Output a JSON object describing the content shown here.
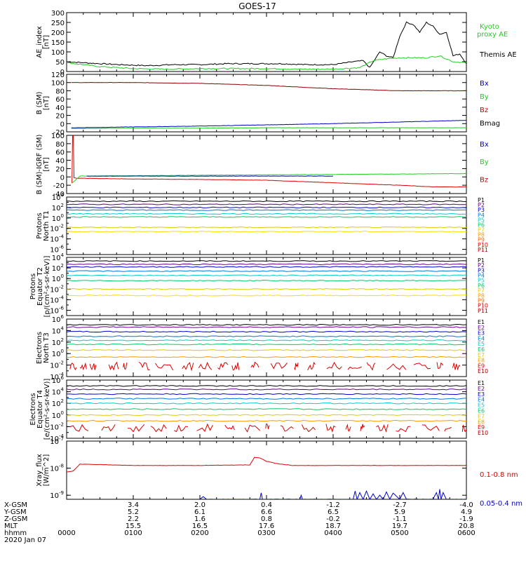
{
  "title": "GOES-17",
  "colors": {
    "black": "#000000",
    "red": "#dd0000",
    "green": "#22dd22",
    "blue": "#0000cc",
    "darkred": "#8b0000"
  },
  "chart_data": [
    {
      "type": "line",
      "panel": "ae",
      "ylabel": [
        "AE_index",
        "[nT]"
      ],
      "ylim": [
        0,
        300
      ],
      "yticks": [
        "300",
        "250",
        "200",
        "150",
        "100",
        "50",
        "0"
      ],
      "legend": [
        {
          "name": "Kyoto",
          "color": "#22cc22"
        },
        {
          "name": "proxy AE",
          "color": "#22cc22"
        },
        {
          "name": "Themis AE",
          "color": "#000000"
        }
      ],
      "series": [
        {
          "name": "Themis AE",
          "color": "#000000",
          "x": [
            0,
            0.5,
            0.8,
            1.2,
            1.6,
            2.0,
            2.4,
            2.8,
            3.2,
            3.6,
            4.0,
            4.3,
            4.45,
            4.55,
            4.7,
            4.8,
            4.9,
            5.0,
            5.1,
            5.2,
            5.3,
            5.4,
            5.5,
            5.6,
            5.7,
            5.8,
            5.9,
            6.0
          ],
          "y": [
            50,
            40,
            35,
            30,
            35,
            35,
            40,
            40,
            40,
            35,
            35,
            50,
            55,
            20,
            100,
            80,
            70,
            180,
            250,
            240,
            200,
            250,
            230,
            190,
            200,
            80,
            90,
            40
          ]
        },
        {
          "name": "Kyoto proxy AE",
          "color": "#22cc22",
          "x": [
            0,
            0.5,
            1,
            1.5,
            2,
            2.5,
            3,
            3.5,
            4,
            4.4,
            4.6,
            4.8,
            5.0,
            5.2,
            5.4,
            5.6,
            5.8,
            6.0
          ],
          "y": [
            45,
            25,
            15,
            12,
            15,
            15,
            15,
            12,
            12,
            20,
            55,
            65,
            70,
            70,
            70,
            80,
            50,
            45
          ]
        }
      ]
    },
    {
      "type": "line",
      "panel": "bsm",
      "ylabel": [
        "B (SM)",
        "[nT]"
      ],
      "ylim": [
        -20,
        120
      ],
      "yticks": [
        "120",
        "100",
        "80",
        "60",
        "40",
        "20",
        "0",
        "-20"
      ],
      "legend": [
        {
          "name": "Bx",
          "color": "#0000cc"
        },
        {
          "name": "By",
          "color": "#22cc22"
        },
        {
          "name": "Bz",
          "color": "#cc0000"
        },
        {
          "name": "Bmag",
          "color": "#000000"
        }
      ],
      "series": [
        {
          "name": "Bz",
          "color": "#8b0000",
          "x": [
            0.07,
            1,
            2,
            3,
            4,
            5,
            6
          ],
          "y": [
            100,
            100,
            98,
            93,
            85,
            80,
            80
          ]
        },
        {
          "name": "Bx",
          "color": "#0000cc",
          "x": [
            0.07,
            1,
            2,
            3,
            4,
            5,
            6
          ],
          "y": [
            -10,
            -8,
            -6,
            -3,
            0,
            4,
            8
          ]
        },
        {
          "name": "By",
          "color": "#22cc22",
          "x": [
            0.07,
            1,
            2,
            3,
            4,
            5,
            6
          ],
          "y": [
            -12,
            -11,
            -11,
            -10,
            -10,
            -10,
            -10
          ]
        }
      ]
    },
    {
      "type": "line",
      "panel": "bsmigrf",
      "ylabel": [
        "B (SM)-IGRF (SM)",
        "[nT]"
      ],
      "ylim": [
        -40,
        100
      ],
      "yticks": [
        "100",
        "80",
        "60",
        "40",
        "20",
        "0",
        "-20",
        "-40"
      ],
      "legend": [
        {
          "name": "Bx",
          "color": "#0000cc"
        },
        {
          "name": "By",
          "color": "#22cc22"
        },
        {
          "name": "Bz",
          "color": "#cc0000"
        }
      ],
      "series": [
        {
          "name": "Bz",
          "color": "#dd0000",
          "x": [
            0.08,
            0.09,
            0.1,
            0.11,
            0.15,
            1,
            2,
            3,
            4,
            5,
            5.5,
            6
          ],
          "y": [
            -15,
            100,
            100,
            -2,
            -3,
            -5,
            -6,
            -8,
            -14,
            -20,
            -24,
            -24
          ]
        },
        {
          "name": "By",
          "color": "#22cc22",
          "x": [
            0.08,
            0.2,
            1,
            2,
            3,
            4,
            5,
            6
          ],
          "y": [
            -15,
            2,
            3,
            4,
            5,
            6,
            7,
            8
          ]
        },
        {
          "name": "Bx",
          "color": "#0000cc",
          "x": [
            0.3,
            1,
            2,
            3,
            4
          ],
          "y": [
            2,
            2,
            2,
            2,
            2
          ]
        }
      ]
    },
    {
      "type": "line",
      "panel": "pnorth",
      "logscale": true,
      "ylabel": [
        "Protons",
        "North T1"
      ],
      "ylim_exp": [
        -7,
        4
      ],
      "ytick_exps": [
        4,
        2,
        0,
        -2,
        -4,
        -6
      ],
      "legend": [
        {
          "name": "P1",
          "color": "#000000"
        },
        {
          "name": "P2",
          "color": "#660088"
        },
        {
          "name": "P3",
          "color": "#0000cc"
        },
        {
          "name": "P4",
          "color": "#0077dd"
        },
        {
          "name": "P5",
          "color": "#00cccc"
        },
        {
          "name": "P6",
          "color": "#00cc66"
        },
        {
          "name": "P7",
          "color": "#ddcc00"
        },
        {
          "name": "P8",
          "color": "#ff9900"
        },
        {
          "name": "P9",
          "color": "#ff6600"
        },
        {
          "name": "P10",
          "color": "#dd0000"
        },
        {
          "name": "P11",
          "color": "#aa0000"
        }
      ],
      "levels": [
        {
          "color": "#000000",
          "y": 3.2
        },
        {
          "color": "#660088",
          "y": 2.6
        },
        {
          "color": "#0000cc",
          "y": 2.0
        },
        {
          "color": "#0077dd",
          "y": 1.5
        },
        {
          "color": "#00cccc",
          "y": 0.8
        },
        {
          "color": "#00cc66",
          "y": 0.2
        },
        {
          "color": "#ddcc00",
          "y": -1.8
        },
        {
          "color": "#ffdd00",
          "y": -2.6
        }
      ]
    },
    {
      "type": "line",
      "panel": "peq",
      "logscale": true,
      "ylabel": [
        "Protons",
        "Equator T2",
        "[p/(cm²-s-sr-keV)]"
      ],
      "ylim_exp": [
        -7,
        4
      ],
      "ytick_exps": [
        4,
        2,
        0,
        -2,
        -4,
        -6
      ],
      "legend": [
        {
          "name": "P1",
          "color": "#000000"
        },
        {
          "name": "P2",
          "color": "#660088"
        },
        {
          "name": "P3",
          "color": "#0000cc"
        },
        {
          "name": "P4",
          "color": "#0077dd"
        },
        {
          "name": "P5",
          "color": "#00cccc"
        },
        {
          "name": "P6",
          "color": "#00cc66"
        },
        {
          "name": "P7",
          "color": "#ddcc00"
        },
        {
          "name": "P8",
          "color": "#ff9900"
        },
        {
          "name": "P9",
          "color": "#ff6600"
        },
        {
          "name": "P10",
          "color": "#dd0000"
        },
        {
          "name": "P11",
          "color": "#aa0000"
        }
      ],
      "levels": [
        {
          "color": "#000000",
          "y": 3.3
        },
        {
          "color": "#660088",
          "y": 2.7
        },
        {
          "color": "#0000cc",
          "y": 2.2
        },
        {
          "color": "#0077dd",
          "y": 1.4
        },
        {
          "color": "#00cccc",
          "y": 0.6
        },
        {
          "color": "#00cc66",
          "y": -0.4
        },
        {
          "color": "#ddcc00",
          "y": -2.0
        },
        {
          "color": "#ffdd00",
          "y": -3.2
        }
      ]
    },
    {
      "type": "line",
      "panel": "enorth",
      "logscale": true,
      "ylabel": [
        "Electrons",
        "North T3"
      ],
      "ylim_exp": [
        -4,
        6
      ],
      "ytick_exps": [
        6,
        4,
        2,
        0,
        -2,
        -4
      ],
      "legend": [
        {
          "name": "E1",
          "color": "#000000"
        },
        {
          "name": "E2",
          "color": "#660088"
        },
        {
          "name": "E3",
          "color": "#0000cc"
        },
        {
          "name": "E4",
          "color": "#0077dd"
        },
        {
          "name": "E5",
          "color": "#00cccc"
        },
        {
          "name": "E6",
          "color": "#00cc66"
        },
        {
          "name": "E7",
          "color": "#ddcc00"
        },
        {
          "name": "E8",
          "color": "#ff9900"
        },
        {
          "name": "E9",
          "color": "#dd0000"
        },
        {
          "name": "E10",
          "color": "#aa0000"
        }
      ],
      "levels": [
        {
          "color": "#000000",
          "y": 5.0
        },
        {
          "color": "#660088",
          "y": 4.6
        },
        {
          "color": "#0000cc",
          "y": 3.8
        },
        {
          "color": "#0077dd",
          "y": 3.0
        },
        {
          "color": "#00cccc",
          "y": 2.3
        },
        {
          "color": "#00cc66",
          "y": 1.6
        },
        {
          "color": "#ddcc00",
          "y": 0.6
        },
        {
          "color": "#ff9900",
          "y": -0.6
        }
      ]
    },
    {
      "type": "line",
      "panel": "eeq",
      "logscale": true,
      "ylabel": [
        "Electrons",
        "Equator T4",
        "[e/(cm²-s-sr-keV)]"
      ],
      "ylim_exp": [
        -4,
        6
      ],
      "ytick_exps": [
        6,
        4,
        2,
        0,
        -2,
        -4
      ],
      "legend": [
        {
          "name": "E1",
          "color": "#000000"
        },
        {
          "name": "E2",
          "color": "#660088"
        },
        {
          "name": "E3",
          "color": "#0000cc"
        },
        {
          "name": "E4",
          "color": "#0077dd"
        },
        {
          "name": "E5",
          "color": "#00cccc"
        },
        {
          "name": "E6",
          "color": "#00cc66"
        },
        {
          "name": "E7",
          "color": "#ddcc00"
        },
        {
          "name": "E8",
          "color": "#ff9900"
        },
        {
          "name": "E9",
          "color": "#dd0000"
        },
        {
          "name": "E10",
          "color": "#aa0000"
        }
      ],
      "levels": [
        {
          "color": "#000000",
          "y": 5.0
        },
        {
          "color": "#660088",
          "y": 4.4
        },
        {
          "color": "#0000cc",
          "y": 3.6
        },
        {
          "color": "#0077dd",
          "y": 2.8
        },
        {
          "color": "#00cccc",
          "y": 2.0
        },
        {
          "color": "#00cc66",
          "y": 1.0
        },
        {
          "color": "#ddcc00",
          "y": 0.0
        },
        {
          "color": "#ff9900",
          "y": -1.0
        }
      ]
    },
    {
      "type": "line",
      "panel": "xray",
      "logscale": true,
      "ylabel": [
        "Xray_flux",
        "[W/m^2]"
      ],
      "ylim_exp": [
        -9.15,
        -7
      ],
      "ytick_exps": [
        -7,
        -8,
        -9
      ],
      "legend": [
        {
          "name": "0.1-0.8 nm",
          "color": "#dd0000"
        },
        {
          "name": "0.05-0.4 nm",
          "color": "#0000cc"
        }
      ],
      "series": [
        {
          "name": "0.1-0.8 nm",
          "color": "#dd0000",
          "x": [
            0,
            0.1,
            0.2,
            1,
            2,
            2.75,
            2.82,
            2.9,
            3.0,
            3.2,
            3.4,
            3.6,
            4,
            5,
            6
          ],
          "y": [
            -8.15,
            -8.1,
            -7.85,
            -7.9,
            -7.9,
            -7.88,
            -7.6,
            -7.62,
            -7.75,
            -7.85,
            -7.9,
            -7.9,
            -7.9,
            -7.9,
            -7.9
          ]
        },
        {
          "name": "0.05-0.4 nm",
          "color": "#0000cc",
          "x": [
            2.0,
            2.05,
            2.1,
            2.9,
            2.92,
            2.94,
            3.5,
            3.52,
            3.54,
            4.3,
            4.33,
            4.36,
            4.4,
            4.45,
            4.5,
            4.55,
            4.6,
            4.65,
            4.7,
            4.75,
            4.8,
            4.85,
            4.9,
            5.0,
            5.05,
            5.1,
            5.5,
            5.55,
            5.58,
            5.6,
            5.62,
            5.65,
            5.7,
            6.0
          ],
          "y": [
            -9.15,
            -9.05,
            -9.15,
            -9.15,
            -8.92,
            -9.15,
            -9.15,
            -9.0,
            -9.15,
            -9.15,
            -8.85,
            -9.15,
            -8.9,
            -9.15,
            -8.85,
            -9.15,
            -8.95,
            -9.15,
            -9.0,
            -9.15,
            -8.88,
            -9.15,
            -8.92,
            -9.15,
            -8.9,
            -9.15,
            -9.15,
            -8.9,
            -9.15,
            -8.78,
            -9.15,
            -8.9,
            -9.15,
            -9.15
          ]
        }
      ]
    }
  ],
  "xaxis": {
    "rows": [
      {
        "label": "X-GSM",
        "values": [
          "3.4",
          "2.0",
          "0.4",
          "-1.2",
          "-2.7",
          "-4.0"
        ]
      },
      {
        "label": "Y-GSM",
        "values": [
          "5.2",
          "6.1",
          "6.6",
          "6.5",
          "5.9",
          "4.9"
        ]
      },
      {
        "label": "Z-GSM",
        "values": [
          "2.2",
          "1.6",
          "0.8",
          "-0.2",
          "-1.1",
          "-1.9"
        ]
      },
      {
        "label": "MLT",
        "values": [
          "15.5",
          "16.5",
          "17.6",
          "18.7",
          "19.7",
          "20.8"
        ]
      }
    ],
    "hhmm_label": "hhmm",
    "hhmm": [
      "0000",
      "0100",
      "0200",
      "0300",
      "0400",
      "0500",
      "0600"
    ],
    "date": "2020 Jan 07"
  }
}
